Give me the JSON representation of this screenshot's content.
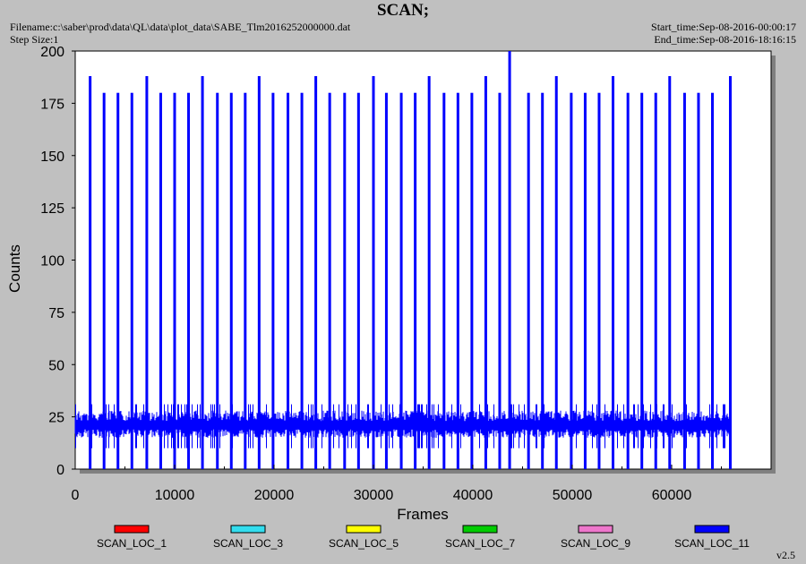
{
  "header": {
    "title": "SCAN;",
    "filename": "Filename:c:\\saber\\prod\\data\\QL\\data\\plot_data\\SABE_Tlm2016252000000.dat",
    "step_size": "Step Size:1",
    "start_time": "Start_time:Sep-08-2016-00:00:17",
    "end_time": "End_time:Sep-08-2016-18:16:15"
  },
  "version": "v2.5",
  "colors": {
    "background": "#c0c0c0",
    "plot_area": "#ffffff",
    "dominant_series": "#0000ff"
  },
  "chart_data": {
    "type": "line",
    "title": "SCAN;",
    "xlabel": "Frames",
    "ylabel": "Counts",
    "xlim": [
      0,
      70000
    ],
    "ylim": [
      0,
      200
    ],
    "xticks": [
      0,
      10000,
      20000,
      30000,
      40000,
      50000,
      60000
    ],
    "yticks": [
      0,
      25,
      50,
      75,
      100,
      125,
      150,
      175,
      200
    ],
    "grid": false,
    "legend_position": "bottom",
    "series": [
      {
        "name": "SCAN_LOC_1",
        "color": "#ff0000"
      },
      {
        "name": "SCAN_LOC_3",
        "color": "#33ddee"
      },
      {
        "name": "SCAN_LOC_5",
        "color": "#ffff00"
      },
      {
        "name": "SCAN_LOC_7",
        "color": "#00cc00"
      },
      {
        "name": "SCAN_LOC_9",
        "color": "#ee77cc"
      },
      {
        "name": "SCAN_LOC_11",
        "color": "#0000ff"
      }
    ],
    "baseline_band": {
      "low": 15,
      "high": 28,
      "min_dip": 10,
      "max_peak": 31
    },
    "spikes": [
      {
        "x": 1500,
        "y": 188
      },
      {
        "x": 2900,
        "y": 180
      },
      {
        "x": 4300,
        "y": 180
      },
      {
        "x": 5700,
        "y": 180
      },
      {
        "x": 7200,
        "y": 188
      },
      {
        "x": 8600,
        "y": 180
      },
      {
        "x": 10000,
        "y": 180
      },
      {
        "x": 11400,
        "y": 180
      },
      {
        "x": 12800,
        "y": 188
      },
      {
        "x": 14300,
        "y": 180
      },
      {
        "x": 15700,
        "y": 180
      },
      {
        "x": 17100,
        "y": 180
      },
      {
        "x": 18500,
        "y": 188
      },
      {
        "x": 19900,
        "y": 180
      },
      {
        "x": 21400,
        "y": 180
      },
      {
        "x": 22800,
        "y": 180
      },
      {
        "x": 24200,
        "y": 188
      },
      {
        "x": 25600,
        "y": 180
      },
      {
        "x": 27100,
        "y": 180
      },
      {
        "x": 28500,
        "y": 180
      },
      {
        "x": 30000,
        "y": 188
      },
      {
        "x": 31300,
        "y": 180
      },
      {
        "x": 32800,
        "y": 180
      },
      {
        "x": 34200,
        "y": 180
      },
      {
        "x": 35600,
        "y": 188
      },
      {
        "x": 37100,
        "y": 180
      },
      {
        "x": 38500,
        "y": 180
      },
      {
        "x": 39900,
        "y": 180
      },
      {
        "x": 41300,
        "y": 188
      },
      {
        "x": 42700,
        "y": 180
      },
      {
        "x": 43700,
        "y": 200
      },
      {
        "x": 45600,
        "y": 180
      },
      {
        "x": 47000,
        "y": 180
      },
      {
        "x": 48400,
        "y": 188
      },
      {
        "x": 49900,
        "y": 180
      },
      {
        "x": 51300,
        "y": 180
      },
      {
        "x": 52700,
        "y": 180
      },
      {
        "x": 54100,
        "y": 188
      },
      {
        "x": 55600,
        "y": 180
      },
      {
        "x": 57000,
        "y": 180
      },
      {
        "x": 58400,
        "y": 180
      },
      {
        "x": 59800,
        "y": 188
      },
      {
        "x": 61300,
        "y": 180
      },
      {
        "x": 62700,
        "y": 180
      },
      {
        "x": 64100,
        "y": 180
      },
      {
        "x": 65900,
        "y": 188
      }
    ],
    "x_end": 65900
  }
}
